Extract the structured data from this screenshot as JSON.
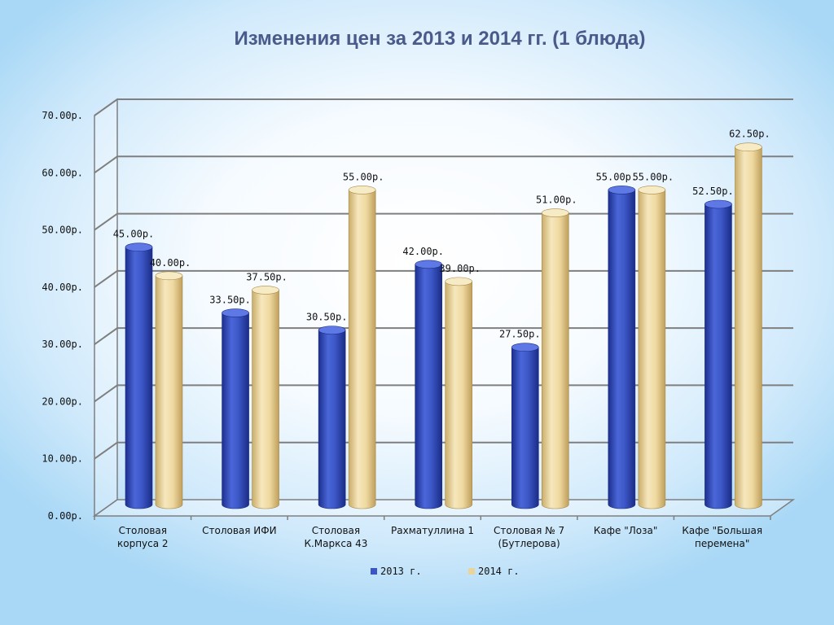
{
  "title": "Изменения  цен за 2013 и  2014 гг. (1 блюда)",
  "colors": {
    "s2013": "#3b55c4",
    "s2014": "#e9d49a"
  },
  "chart_data": {
    "type": "bar",
    "title": "Изменения  цен за 2013 и  2014 гг. (1 блюда)",
    "categories": [
      [
        "Столовая",
        "корпуса 2"
      ],
      [
        "Столовая ИФИ"
      ],
      [
        "Столовая",
        "К.Маркса 43"
      ],
      [
        "Рахматуллина 1"
      ],
      [
        "Столовая № 7",
        "(Бутлерова)"
      ],
      [
        "Кафе \"Лоза\""
      ],
      [
        "Кафе \"Большая",
        "перемена\""
      ]
    ],
    "series": [
      {
        "name": "2013 г.",
        "values": [
          45.0,
          33.5,
          30.5,
          42.0,
          27.5,
          55.0,
          52.5
        ],
        "labels": [
          "45.00р.",
          "33.50р.",
          "30.50р.",
          "42.00р.",
          "27.50р.",
          "55.00р.",
          "52.50р."
        ]
      },
      {
        "name": "2014 г.",
        "values": [
          40.0,
          37.5,
          55.0,
          39.0,
          51.0,
          55.0,
          62.5
        ],
        "labels": [
          "40.00р.",
          "37.50р.",
          "55.00р.",
          "39.00р.",
          "51.00р.",
          "55.00р.",
          "62.50р."
        ]
      }
    ],
    "yticks": [
      "0.00р.",
      "10.00р.",
      "20.00р.",
      "30.00р.",
      "40.00р.",
      "50.00р.",
      "60.00р.",
      "70.00р."
    ],
    "ylim": [
      0,
      70
    ],
    "grid": true,
    "legend": "bottom"
  }
}
